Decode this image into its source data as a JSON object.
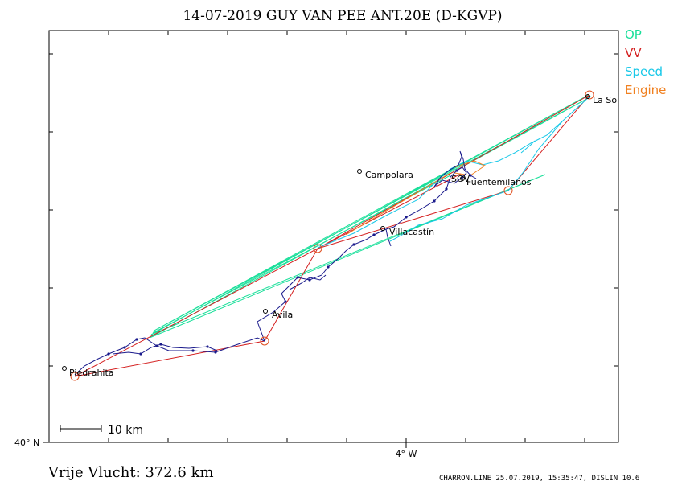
{
  "title": "14-07-2019   GUY VAN PEE   ANT.20E (D-KGVP)",
  "legend": [
    {
      "label": "OP",
      "color": "#1adf9a"
    },
    {
      "label": "VV",
      "color": "#d42020"
    },
    {
      "label": "Speed",
      "color": "#18c8e8"
    },
    {
      "label": "Engine",
      "color": "#f08020"
    }
  ],
  "colors": {
    "track": "#1a1a8c",
    "op": "#1adf9a",
    "vv": "#d42020",
    "speed": "#18c8e8",
    "engine": "#f08020",
    "frame": "#000000"
  },
  "places": [
    {
      "name": "La So"
    },
    {
      "name": "Campolara"
    },
    {
      "name": "Fuentemilanos"
    },
    {
      "name": "SGV"
    },
    {
      "name": "Villacastín"
    },
    {
      "name": "Avila"
    },
    {
      "name": "Piedrahita"
    }
  ],
  "axis": {
    "lat_label": "40° N",
    "lon_label": "4° W"
  },
  "scale_bar": {
    "label": "10 km"
  },
  "distance": "Vrije Vlucht:  372.6 km",
  "footer": "CHARRON.LINE 25.07.2019, 15:35:47, DISLIN 10.6"
}
